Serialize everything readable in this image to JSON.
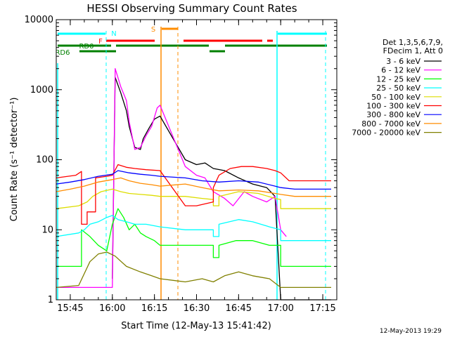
{
  "chart_data": {
    "type": "line",
    "title": "HESSI Observing Summary Count Rates",
    "xlabel": "Start Time (12-May-13 15:41:42)",
    "ylabel": "Count Rate (s⁻¹ detector⁻¹)",
    "x_unit": "minutes",
    "xlim": [
      "15:40",
      "17:20"
    ],
    "ylim": [
      1,
      10000
    ],
    "yscale": "log",
    "x_ticks": [
      "15:45",
      "16:00",
      "16:15",
      "16:30",
      "16:45",
      "17:00",
      "17:15"
    ],
    "y_ticks": [
      "1",
      "10",
      "100",
      "1000",
      "10000"
    ],
    "legend_header": [
      "Det 1,3,5,6,7,9,",
      "FDecim 1, Att 0"
    ],
    "legend_position": "right",
    "footer_date": "12-May-2013 19:29",
    "flag_labels": {
      "night": "N",
      "flare": "F",
      "saa": "S",
      "rd0": "RD0",
      "rd6": "RD6"
    },
    "gaps": [
      [
        "16:18",
        "16:26"
      ]
    ],
    "series": [
      {
        "name": "3 - 6 keV",
        "color": "#000000",
        "points": [
          [
            "16:00",
            2
          ],
          [
            "16:01",
            1500
          ],
          [
            "16:03",
            900
          ],
          [
            "16:05",
            500
          ],
          [
            "16:06",
            300
          ],
          [
            "16:08",
            150
          ],
          [
            "16:10",
            140
          ],
          [
            "16:11",
            200
          ],
          [
            "16:13",
            280
          ],
          [
            "16:15",
            380
          ],
          [
            "16:17",
            420
          ],
          [
            "16:26",
            100
          ],
          [
            "16:30",
            85
          ],
          [
            "16:33",
            90
          ],
          [
            "16:36",
            75
          ],
          [
            "16:40",
            70
          ],
          [
            "16:45",
            55
          ],
          [
            "16:50",
            45
          ],
          [
            "16:55",
            40
          ],
          [
            "16:58",
            30
          ],
          [
            "17:00",
            1
          ],
          [
            "17:18",
            1
          ]
        ]
      },
      {
        "name": "6 - 12 keV",
        "color": "#ff00ff",
        "points": [
          [
            "15:40",
            1.5
          ],
          [
            "16:00",
            1.5
          ],
          [
            "16:01",
            2000
          ],
          [
            "16:03",
            1100
          ],
          [
            "16:05",
            700
          ],
          [
            "16:06",
            350
          ],
          [
            "16:08",
            140
          ],
          [
            "16:10",
            150
          ],
          [
            "16:12",
            220
          ],
          [
            "16:14",
            300
          ],
          [
            "16:16",
            550
          ],
          [
            "16:17",
            600
          ],
          [
            "16:26",
            80
          ],
          [
            "16:30",
            60
          ],
          [
            "16:33",
            55
          ],
          [
            "16:36",
            35
          ],
          [
            "16:40",
            28
          ],
          [
            "16:43",
            22
          ],
          [
            "16:47",
            35
          ],
          [
            "16:50",
            30
          ],
          [
            "16:55",
            25
          ],
          [
            "16:58",
            30
          ],
          [
            "17:00",
            10
          ],
          [
            "17:02",
            8
          ]
        ]
      },
      {
        "name": "12 - 25 keV",
        "color": "#00ff00",
        "points": [
          [
            "15:40",
            3
          ],
          [
            "15:49",
            3
          ],
          [
            "15:49",
            10
          ],
          [
            "15:52",
            8
          ],
          [
            "15:55",
            6
          ],
          [
            "15:58",
            5
          ],
          [
            "16:00",
            12
          ],
          [
            "16:02",
            20
          ],
          [
            "16:04",
            15
          ],
          [
            "16:06",
            10
          ],
          [
            "16:08",
            12
          ],
          [
            "16:10",
            9
          ],
          [
            "16:12",
            8
          ],
          [
            "16:15",
            7
          ],
          [
            "16:17",
            6
          ],
          [
            "16:26",
            6
          ],
          [
            "16:30",
            6
          ],
          [
            "16:36",
            6
          ],
          [
            "16:36",
            4
          ],
          [
            "16:38",
            4
          ],
          [
            "16:38",
            6
          ],
          [
            "16:44",
            7
          ],
          [
            "16:50",
            7
          ],
          [
            "16:56",
            6
          ],
          [
            "17:00",
            6
          ],
          [
            "17:00",
            3
          ],
          [
            "17:18",
            3
          ]
        ]
      },
      {
        "name": "25 - 50 keV",
        "color": "#00ffff",
        "points": [
          [
            "15:40",
            8
          ],
          [
            "15:48",
            9
          ],
          [
            "15:50",
            10
          ],
          [
            "15:52",
            12
          ],
          [
            "15:55",
            13
          ],
          [
            "15:58",
            15
          ],
          [
            "16:00",
            16
          ],
          [
            "16:02",
            14
          ],
          [
            "16:05",
            13
          ],
          [
            "16:08",
            12
          ],
          [
            "16:12",
            12
          ],
          [
            "16:17",
            11
          ],
          [
            "16:26",
            10
          ],
          [
            "16:32",
            10
          ],
          [
            "16:36",
            10
          ],
          [
            "16:36",
            8
          ],
          [
            "16:38",
            8
          ],
          [
            "16:38",
            12
          ],
          [
            "16:45",
            14
          ],
          [
            "16:50",
            13
          ],
          [
            "16:56",
            11
          ],
          [
            "17:00",
            10
          ],
          [
            "17:00",
            7
          ],
          [
            "17:18",
            7
          ]
        ]
      },
      {
        "name": "50 - 100 keV",
        "color": "#dddd00",
        "points": [
          [
            "15:40",
            20
          ],
          [
            "15:48",
            22
          ],
          [
            "15:51",
            25
          ],
          [
            "15:53",
            30
          ],
          [
            "15:56",
            35
          ],
          [
            "16:00",
            38
          ],
          [
            "16:03",
            35
          ],
          [
            "16:06",
            33
          ],
          [
            "16:10",
            32
          ],
          [
            "16:14",
            31
          ],
          [
            "16:17",
            30
          ],
          [
            "16:26",
            30
          ],
          [
            "16:32",
            28
          ],
          [
            "16:36",
            27
          ],
          [
            "16:36",
            22
          ],
          [
            "16:38",
            22
          ],
          [
            "16:38",
            30
          ],
          [
            "16:45",
            35
          ],
          [
            "16:52",
            33
          ],
          [
            "16:58",
            28
          ],
          [
            "17:00",
            27
          ],
          [
            "17:00",
            20
          ],
          [
            "17:18",
            20
          ]
        ]
      },
      {
        "name": "100 - 300 keV",
        "color": "#ff0000",
        "points": [
          [
            "15:40",
            55
          ],
          [
            "15:47",
            60
          ],
          [
            "15:49",
            68
          ],
          [
            "15:49",
            12
          ],
          [
            "15:51",
            12
          ],
          [
            "15:51",
            18
          ],
          [
            "15:54",
            18
          ],
          [
            "15:54",
            55
          ],
          [
            "15:58",
            58
          ],
          [
            "16:00",
            60
          ],
          [
            "16:02",
            85
          ],
          [
            "16:05",
            78
          ],
          [
            "16:08",
            75
          ],
          [
            "16:12",
            72
          ],
          [
            "16:17",
            70
          ],
          [
            "16:26",
            22
          ],
          [
            "16:30",
            22
          ],
          [
            "16:36",
            25
          ],
          [
            "16:36",
            40
          ],
          [
            "16:38",
            60
          ],
          [
            "16:42",
            75
          ],
          [
            "16:46",
            80
          ],
          [
            "16:50",
            80
          ],
          [
            "16:55",
            75
          ],
          [
            "16:58",
            70
          ],
          [
            "17:00",
            65
          ],
          [
            "17:03",
            50
          ],
          [
            "17:18",
            50
          ]
        ]
      },
      {
        "name": "300 - 800 keV",
        "color": "#0000ff",
        "points": [
          [
            "15:40",
            45
          ],
          [
            "15:45",
            48
          ],
          [
            "15:50",
            52
          ],
          [
            "15:55",
            58
          ],
          [
            "16:00",
            62
          ],
          [
            "16:02",
            70
          ],
          [
            "16:06",
            65
          ],
          [
            "16:10",
            62
          ],
          [
            "16:14",
            60
          ],
          [
            "16:17",
            58
          ],
          [
            "16:26",
            55
          ],
          [
            "16:32",
            50
          ],
          [
            "16:38",
            48
          ],
          [
            "16:45",
            50
          ],
          [
            "16:52",
            48
          ],
          [
            "16:58",
            42
          ],
          [
            "17:00",
            40
          ],
          [
            "17:05",
            38
          ],
          [
            "17:18",
            38
          ]
        ]
      },
      {
        "name": "800 - 7000 keV",
        "color": "#ff8c00",
        "points": [
          [
            "15:40",
            35
          ],
          [
            "15:45",
            38
          ],
          [
            "15:50",
            42
          ],
          [
            "15:55",
            48
          ],
          [
            "16:00",
            52
          ],
          [
            "16:03",
            55
          ],
          [
            "16:06",
            50
          ],
          [
            "16:10",
            46
          ],
          [
            "16:14",
            44
          ],
          [
            "16:17",
            42
          ],
          [
            "16:26",
            45
          ],
          [
            "16:32",
            40
          ],
          [
            "16:38",
            36
          ],
          [
            "16:45",
            37
          ],
          [
            "16:52",
            36
          ],
          [
            "16:58",
            33
          ],
          [
            "17:00",
            32
          ],
          [
            "17:05",
            30
          ],
          [
            "17:18",
            30
          ]
        ]
      },
      {
        "name": "7000 - 20000 keV",
        "color": "#808000",
        "points": [
          [
            "15:40",
            1.5
          ],
          [
            "15:48",
            1.6
          ],
          [
            "15:52",
            3.5
          ],
          [
            "15:55",
            4.5
          ],
          [
            "15:58",
            4.8
          ],
          [
            "16:01",
            4.2
          ],
          [
            "16:05",
            3
          ],
          [
            "16:10",
            2.5
          ],
          [
            "16:14",
            2.2
          ],
          [
            "16:17",
            2
          ],
          [
            "16:26",
            1.8
          ],
          [
            "16:32",
            2
          ],
          [
            "16:36",
            1.8
          ],
          [
            "16:40",
            2.2
          ],
          [
            "16:45",
            2.5
          ],
          [
            "16:50",
            2.2
          ],
          [
            "16:56",
            2
          ],
          [
            "17:00",
            1.5
          ],
          [
            "17:18",
            1.5
          ]
        ]
      }
    ]
  }
}
